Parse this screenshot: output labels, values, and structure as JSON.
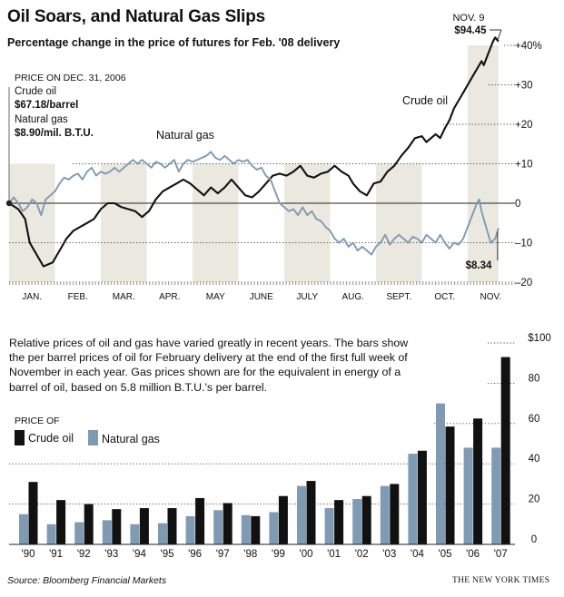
{
  "header": {
    "title": "Oil Soars, and Natural Gas Slips",
    "subtitle": "Percentage change in the price of futures for Feb. '08 delivery"
  },
  "reference_note": {
    "heading": "PRICE ON DEC. 31, 2006",
    "oil_label": "Crude oil",
    "oil_value": "$67.18/barrel",
    "gas_label": "Natural gas",
    "gas_value": "$8.90/mil. B.T.U."
  },
  "blurb": "Relative prices of oil and gas have varied greatly in recent years. The bars show the per barrel prices of oil for February delivery at the end of the first full week of November in each year. Gas prices shown are for the equivalent in energy of a barrel of oil, based on 5.8 million B.T.U.'s per barrel.",
  "legend": {
    "title": "PRICE OF",
    "oil": "Crude oil",
    "gas": "Natural gas"
  },
  "footer": {
    "source": "Source: Bloomberg Financial Markets",
    "credit": "THE NEW YORK TIMES"
  },
  "colors": {
    "oil": "#111111",
    "gas": "#7e9bb3",
    "shade": "#ebe8df",
    "grid": "#555555"
  },
  "chart_data": [
    {
      "type": "line",
      "y_unit": "percent change since Dec. 31, 2006",
      "ylim": [
        -20,
        40
      ],
      "y_ticks": [
        -20,
        -10,
        0,
        10,
        20,
        30,
        40
      ],
      "y_tick_labels": [
        "–20",
        "–10",
        "0",
        "+10",
        "+20",
        "+30",
        "+40%"
      ],
      "months": [
        "JAN.",
        "FEB.",
        "MAR.",
        "APR.",
        "MAY",
        "JUNE",
        "JULY",
        "AUG.",
        "SEPT.",
        "OCT.",
        "NOV."
      ],
      "series": [
        {
          "name": "Crude oil",
          "key": "oil",
          "label_text": "Crude oil",
          "points": [
            [
              0.0,
              0.0
            ],
            [
              0.2,
              -1.5
            ],
            [
              0.35,
              -4
            ],
            [
              0.45,
              -10
            ],
            [
              0.55,
              -12
            ],
            [
              0.65,
              -14
            ],
            [
              0.75,
              -16
            ],
            [
              0.85,
              -15.5
            ],
            [
              0.95,
              -15
            ],
            [
              1.05,
              -13
            ],
            [
              1.15,
              -11
            ],
            [
              1.25,
              -9
            ],
            [
              1.4,
              -7
            ],
            [
              1.55,
              -6
            ],
            [
              1.7,
              -5
            ],
            [
              1.85,
              -4
            ],
            [
              2.0,
              -1.5
            ],
            [
              2.15,
              0
            ],
            [
              2.3,
              0
            ],
            [
              2.45,
              -1
            ],
            [
              2.6,
              -1.5
            ],
            [
              2.75,
              -2
            ],
            [
              2.9,
              -3.5
            ],
            [
              3.05,
              -2
            ],
            [
              3.2,
              1
            ],
            [
              3.35,
              3
            ],
            [
              3.5,
              4
            ],
            [
              3.65,
              5
            ],
            [
              3.8,
              6
            ],
            [
              3.95,
              5
            ],
            [
              4.1,
              3.5
            ],
            [
              4.25,
              2
            ],
            [
              4.4,
              4
            ],
            [
              4.55,
              2.5
            ],
            [
              4.7,
              4
            ],
            [
              4.85,
              6
            ],
            [
              5.0,
              4
            ],
            [
              5.15,
              2
            ],
            [
              5.3,
              1.5
            ],
            [
              5.45,
              3
            ],
            [
              5.6,
              5
            ],
            [
              5.75,
              7
            ],
            [
              5.9,
              7.5
            ],
            [
              6.05,
              7
            ],
            [
              6.2,
              8
            ],
            [
              6.35,
              9.5
            ],
            [
              6.5,
              7
            ],
            [
              6.65,
              6.5
            ],
            [
              6.8,
              7.5
            ],
            [
              6.95,
              8
            ],
            [
              7.1,
              9.5
            ],
            [
              7.25,
              8
            ],
            [
              7.4,
              7
            ],
            [
              7.5,
              5
            ],
            [
              7.65,
              3
            ],
            [
              7.8,
              2
            ],
            [
              7.95,
              5
            ],
            [
              8.1,
              5.5
            ],
            [
              8.25,
              8
            ],
            [
              8.4,
              9.5
            ],
            [
              8.55,
              12
            ],
            [
              8.7,
              14
            ],
            [
              8.85,
              16.5
            ],
            [
              9.0,
              17
            ],
            [
              9.1,
              15.5
            ],
            [
              9.2,
              16.5
            ],
            [
              9.3,
              17.5
            ],
            [
              9.4,
              16.5
            ],
            [
              9.5,
              19
            ],
            [
              9.6,
              21
            ],
            [
              9.7,
              24
            ],
            [
              9.8,
              26
            ],
            [
              9.9,
              28
            ],
            [
              10.0,
              30
            ],
            [
              10.1,
              32
            ],
            [
              10.2,
              34
            ],
            [
              10.3,
              36
            ],
            [
              10.35,
              35
            ],
            [
              10.45,
              38
            ],
            [
              10.55,
              41
            ],
            [
              10.6,
              42
            ],
            [
              10.67,
              41
            ]
          ],
          "end_label": "$94.45",
          "end_date": "NOV. 9",
          "end_value": 40.6
        },
        {
          "name": "Natural gas",
          "key": "gas",
          "label_text": "Natural gas",
          "points": [
            [
              0.0,
              0.0
            ],
            [
              0.1,
              1.5
            ],
            [
              0.2,
              0
            ],
            [
              0.3,
              -2
            ],
            [
              0.4,
              -1
            ],
            [
              0.5,
              1
            ],
            [
              0.6,
              0
            ],
            [
              0.7,
              -3
            ],
            [
              0.8,
              1
            ],
            [
              0.9,
              2
            ],
            [
              1.0,
              3
            ],
            [
              1.1,
              5
            ],
            [
              1.2,
              6.5
            ],
            [
              1.3,
              6
            ],
            [
              1.4,
              7
            ],
            [
              1.5,
              7.5
            ],
            [
              1.6,
              6
            ],
            [
              1.7,
              8
            ],
            [
              1.8,
              9
            ],
            [
              1.9,
              7
            ],
            [
              2.0,
              8
            ],
            [
              2.1,
              7.5
            ],
            [
              2.2,
              8
            ],
            [
              2.3,
              9
            ],
            [
              2.4,
              8
            ],
            [
              2.5,
              9
            ],
            [
              2.6,
              10
            ],
            [
              2.7,
              11
            ],
            [
              2.8,
              10
            ],
            [
              2.9,
              11
            ],
            [
              3.0,
              10
            ],
            [
              3.1,
              9
            ],
            [
              3.2,
              10.5
            ],
            [
              3.3,
              10
            ],
            [
              3.4,
              9
            ],
            [
              3.5,
              10
            ],
            [
              3.6,
              11
            ],
            [
              3.7,
              8
            ],
            [
              3.8,
              10
            ],
            [
              3.9,
              11
            ],
            [
              4.0,
              10.5
            ],
            [
              4.1,
              11
            ],
            [
              4.2,
              11.5
            ],
            [
              4.3,
              12
            ],
            [
              4.4,
              13
            ],
            [
              4.5,
              11.5
            ],
            [
              4.6,
              11
            ],
            [
              4.7,
              12
            ],
            [
              4.8,
              11
            ],
            [
              4.9,
              10
            ],
            [
              5.0,
              11
            ],
            [
              5.1,
              10.5
            ],
            [
              5.2,
              11
            ],
            [
              5.3,
              9.5
            ],
            [
              5.4,
              8.5
            ],
            [
              5.5,
              9
            ],
            [
              5.6,
              7
            ],
            [
              5.7,
              6
            ],
            [
              5.8,
              3
            ],
            [
              5.9,
              0
            ],
            [
              6.0,
              -1
            ],
            [
              6.1,
              -2
            ],
            [
              6.2,
              -1.5
            ],
            [
              6.3,
              -3
            ],
            [
              6.4,
              -1
            ],
            [
              6.5,
              -3
            ],
            [
              6.6,
              -2
            ],
            [
              6.7,
              -4
            ],
            [
              6.8,
              -4.5
            ],
            [
              6.9,
              -6
            ],
            [
              7.0,
              -7
            ],
            [
              7.1,
              -9
            ],
            [
              7.2,
              -10
            ],
            [
              7.3,
              -9
            ],
            [
              7.4,
              -11
            ],
            [
              7.5,
              -10
            ],
            [
              7.6,
              -12
            ],
            [
              7.7,
              -11
            ],
            [
              7.8,
              -12
            ],
            [
              7.9,
              -13
            ],
            [
              8.0,
              -11
            ],
            [
              8.1,
              -10
            ],
            [
              8.2,
              -8
            ],
            [
              8.3,
              -10.5
            ],
            [
              8.4,
              -9
            ],
            [
              8.5,
              -8
            ],
            [
              8.6,
              -9
            ],
            [
              8.7,
              -10
            ],
            [
              8.8,
              -8.5
            ],
            [
              8.9,
              -9
            ],
            [
              9.0,
              -10
            ],
            [
              9.1,
              -8
            ],
            [
              9.2,
              -9
            ],
            [
              9.3,
              -10
            ],
            [
              9.4,
              -8
            ],
            [
              9.5,
              -10
            ],
            [
              9.6,
              -11.5
            ],
            [
              9.7,
              -10
            ],
            [
              9.8,
              -10.5
            ],
            [
              9.9,
              -9
            ],
            [
              10.0,
              -6
            ],
            [
              10.1,
              -3
            ],
            [
              10.2,
              0
            ],
            [
              10.25,
              1
            ],
            [
              10.3,
              -2
            ],
            [
              10.4,
              -6
            ],
            [
              10.5,
              -10
            ],
            [
              10.6,
              -9
            ],
            [
              10.67,
              -6.3
            ]
          ],
          "end_label": "$8.34",
          "end_value": -6.3
        }
      ],
      "shaded_periods": [
        [
          0,
          1
        ],
        [
          2,
          3
        ],
        [
          4,
          5
        ],
        [
          6,
          7
        ],
        [
          8,
          9
        ],
        [
          10,
          10.67
        ]
      ]
    },
    {
      "type": "bar",
      "categories": [
        "'90",
        "'91",
        "'92",
        "'93",
        "'94",
        "'95",
        "'96",
        "'97",
        "'98",
        "'99",
        "'00",
        "'01",
        "'02",
        "'03",
        "'04",
        "'05",
        "'06",
        "'07"
      ],
      "ylim": [
        0,
        100
      ],
      "y_ticks": [
        0,
        20,
        40,
        60,
        80,
        100
      ],
      "y_tick_labels": [
        "0",
        "20",
        "40",
        "60",
        "80",
        "$100"
      ],
      "series": [
        {
          "name": "Natural gas",
          "key": "gas",
          "values": [
            15,
            10,
            11,
            12,
            10,
            10.5,
            14,
            17,
            14.5,
            16,
            29,
            18,
            22.5,
            29,
            45,
            70,
            48,
            48
          ]
        },
        {
          "name": "Crude oil",
          "key": "oil",
          "values": [
            31,
            22,
            20,
            17.5,
            18,
            18,
            23,
            20.5,
            14,
            24,
            31.5,
            22,
            24,
            30,
            46.5,
            58.5,
            62.5,
            93
          ]
        }
      ]
    }
  ]
}
